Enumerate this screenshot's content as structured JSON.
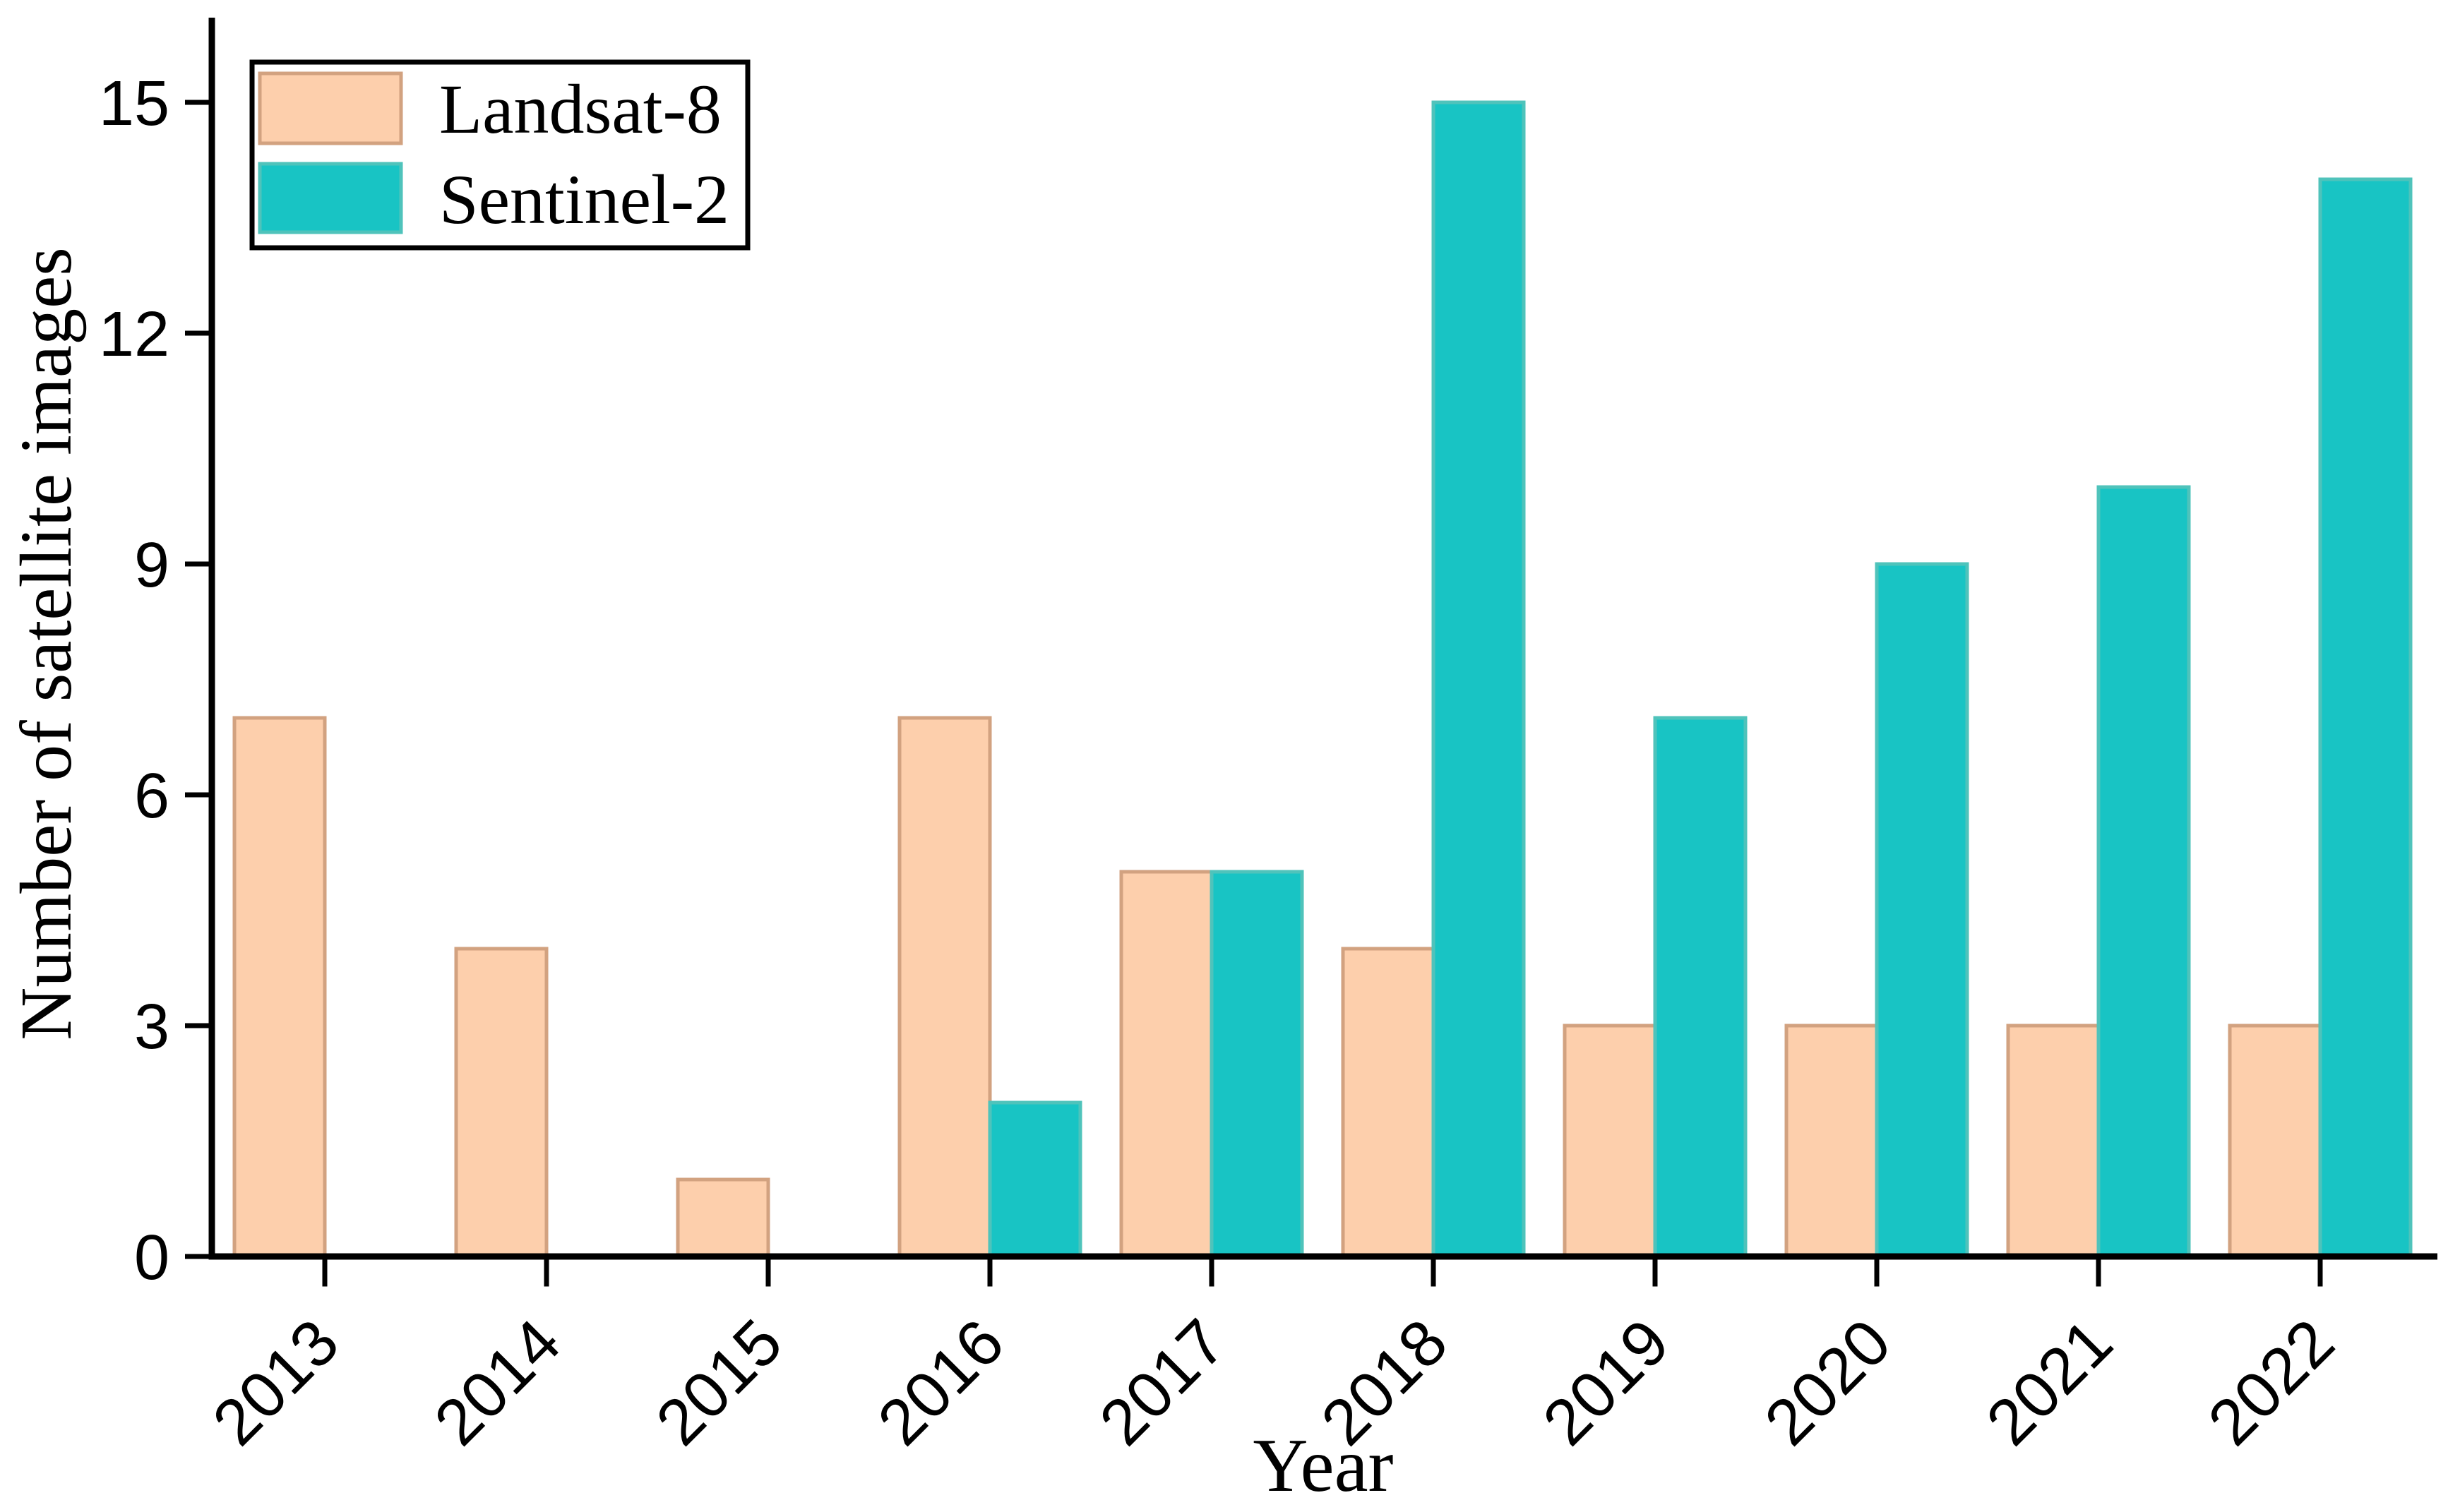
{
  "figure": {
    "background": "#ffffff",
    "axis_color": "#000000",
    "text_color": "#000000"
  },
  "chart_data": {
    "type": "bar",
    "title": "",
    "xlabel": "Year",
    "ylabel": "Number of satellite images",
    "categories": [
      "2013",
      "2014",
      "2015",
      "2016",
      "2017",
      "2018",
      "2019",
      "2020",
      "2021",
      "2022"
    ],
    "series": [
      {
        "name": "Landsat-8",
        "values": [
          7,
          4,
          1,
          7,
          5,
          4,
          3,
          3,
          3,
          3
        ],
        "fill": "#fdcfac",
        "border": "#d2a280"
      },
      {
        "name": "Sentinel-2",
        "values": [
          0,
          0,
          0,
          2,
          5,
          15,
          7,
          9,
          10,
          14
        ],
        "fill": "#18c4c4",
        "border": "#4fc3bb"
      }
    ],
    "ylim": [
      0,
      15
    ],
    "yticks": [
      0,
      3,
      6,
      9,
      12,
      15
    ],
    "x_tick_rotation_deg": 45,
    "grid": false,
    "legend_position": "upper-left",
    "legend_entries": [
      "Landsat-8",
      "Sentinel-2"
    ]
  }
}
